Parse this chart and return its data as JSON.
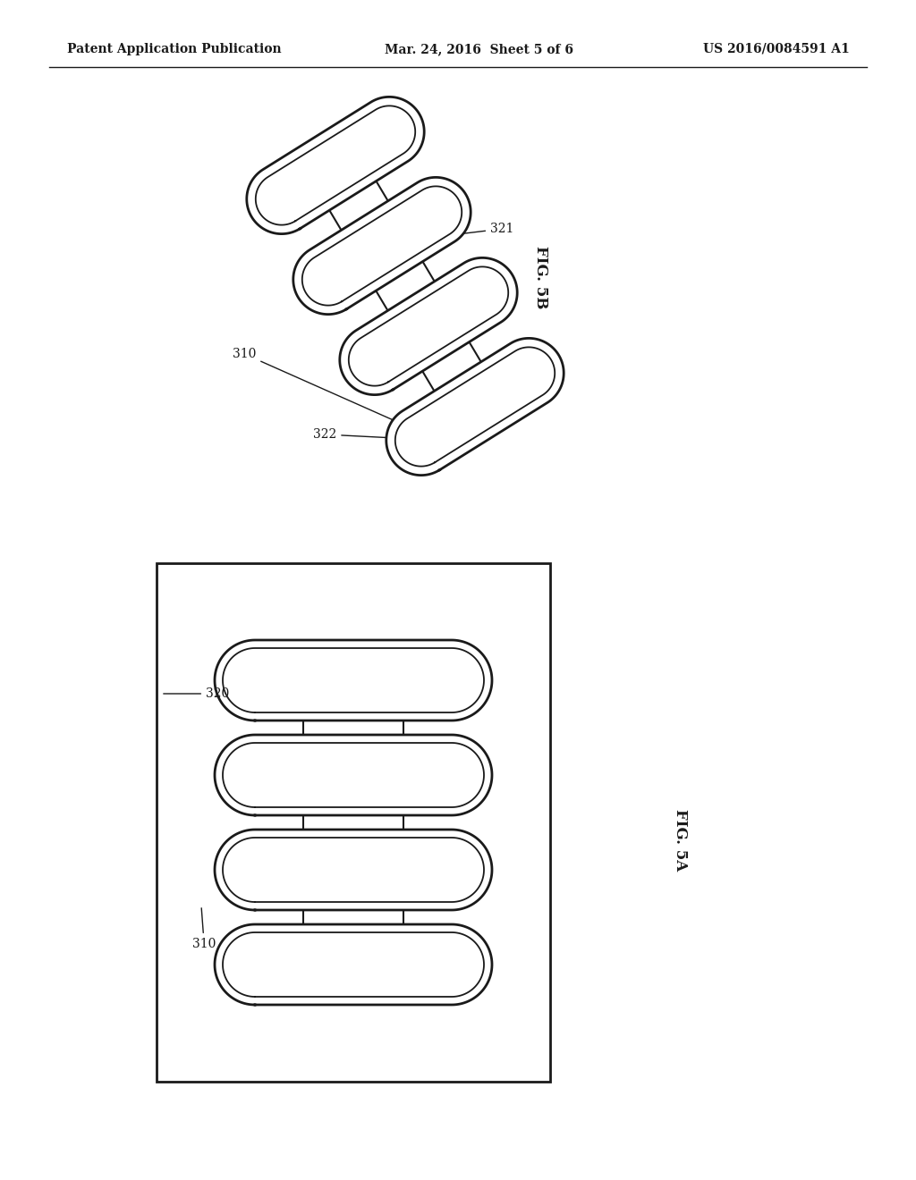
{
  "bg_color": "#ffffff",
  "line_color": "#1a1a1a",
  "header_left": "Patent Application Publication",
  "header_mid": "Mar. 24, 2016  Sheet 5 of 6",
  "header_right": "US 2016/0084591 A1",
  "fig5b_label": "FIG. 5B",
  "fig5a_label": "FIG. 5A"
}
